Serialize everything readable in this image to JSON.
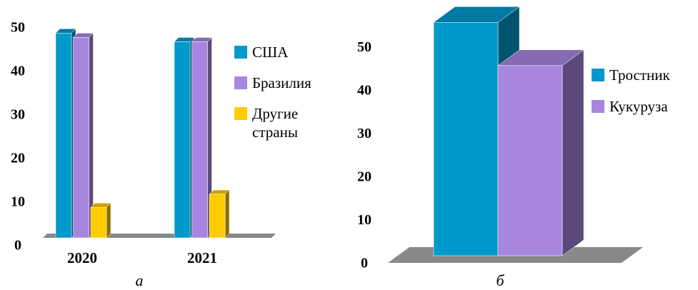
{
  "chart_data": [
    {
      "type": "bar3d",
      "caption": "а",
      "categories": [
        "2020",
        "2021"
      ],
      "series": [
        {
          "name": "США",
          "color": "#0099cc",
          "values": [
            47,
            45
          ]
        },
        {
          "name": "Бразилия",
          "color": "#a886e0",
          "values": [
            46,
            45
          ]
        },
        {
          "name": "Другие страны",
          "color": "#ffcc00",
          "values": [
            7,
            10
          ]
        }
      ],
      "ylim": [
        0,
        50
      ],
      "yticks": [
        0,
        10,
        20,
        30,
        40,
        50
      ]
    },
    {
      "type": "bar3d",
      "caption": "б",
      "categories": [
        ""
      ],
      "series": [
        {
          "name": "Тростник",
          "color": "#0099cc",
          "values": [
            54
          ]
        },
        {
          "name": "Кукуруза",
          "color": "#a886e0",
          "values": [
            44
          ]
        }
      ],
      "ylim": [
        0,
        55
      ],
      "yticks": [
        0,
        10,
        20,
        30,
        40,
        50
      ]
    }
  ]
}
